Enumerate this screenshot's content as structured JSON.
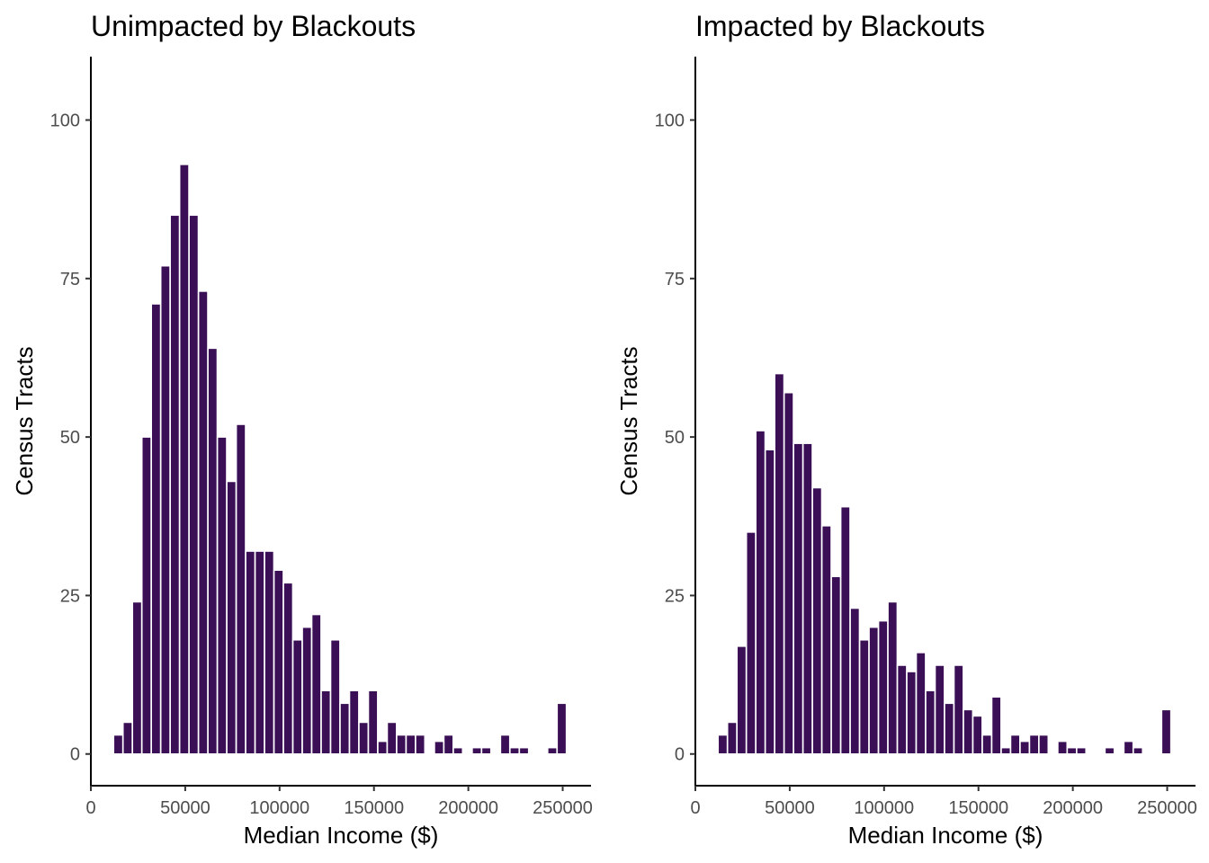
{
  "chart_data": [
    {
      "type": "bar",
      "title": "Unimpacted by Blackouts",
      "xlabel": "Median Income ($)",
      "ylabel": "Census Tracts",
      "xlim": [
        0,
        265000
      ],
      "ylim": [
        -5,
        110
      ],
      "x_ticks": [
        0,
        50000,
        100000,
        150000,
        200000,
        250000
      ],
      "y_ticks": [
        0,
        25,
        50,
        75,
        100
      ],
      "grid": false,
      "bar_color": "#3b0f56",
      "bin_width": 4900,
      "x": [
        14500,
        19500,
        24500,
        29500,
        34500,
        39500,
        44500,
        49500,
        54500,
        59500,
        64500,
        69500,
        74500,
        79500,
        84500,
        89500,
        94500,
        99500,
        104500,
        109500,
        114500,
        119500,
        124500,
        129500,
        134500,
        139500,
        144500,
        149500,
        154500,
        159500,
        164500,
        169500,
        174500,
        179500,
        184500,
        189500,
        194500,
        199500,
        204500,
        209500,
        214500,
        219500,
        224500,
        229500,
        234500,
        239500,
        244500,
        249500
      ],
      "values": [
        3,
        5,
        24,
        50,
        71,
        77,
        85,
        93,
        85,
        73,
        64,
        50,
        43,
        52,
        32,
        32,
        32,
        29,
        27,
        18,
        20,
        22,
        10,
        18,
        8,
        10,
        5,
        10,
        2,
        5,
        3,
        3,
        3,
        0,
        2,
        3,
        1,
        0,
        1,
        1,
        0,
        3,
        1,
        1,
        0,
        0,
        1,
        8
      ]
    },
    {
      "type": "bar",
      "title": "Impacted by Blackouts",
      "xlabel": "Median Income ($)",
      "ylabel": "Census Tracts",
      "xlim": [
        0,
        265000
      ],
      "ylim": [
        -5,
        110
      ],
      "x_ticks": [
        0,
        50000,
        100000,
        150000,
        200000,
        250000
      ],
      "y_ticks": [
        0,
        25,
        50,
        75,
        100
      ],
      "grid": false,
      "bar_color": "#3b0f56",
      "bin_width": 4900,
      "x": [
        14500,
        19500,
        24500,
        29500,
        34500,
        39500,
        44500,
        49500,
        54500,
        59500,
        64500,
        69500,
        74500,
        79500,
        84500,
        89500,
        94500,
        99500,
        104500,
        109500,
        114500,
        119500,
        124500,
        129500,
        134500,
        139500,
        144500,
        149500,
        154500,
        159500,
        164500,
        169500,
        174500,
        179500,
        184500,
        189500,
        194500,
        199500,
        204500,
        209500,
        214500,
        219500,
        224500,
        229500,
        234500,
        239500,
        244500,
        249500
      ],
      "values": [
        3,
        5,
        17,
        35,
        51,
        48,
        60,
        57,
        49,
        49,
        42,
        36,
        28,
        39,
        23,
        18,
        20,
        21,
        24,
        14,
        13,
        16,
        10,
        14,
        8,
        14,
        7,
        6,
        3,
        9,
        1,
        3,
        2,
        3,
        3,
        0,
        2,
        1,
        1,
        0,
        0,
        1,
        0,
        2,
        1,
        0,
        0,
        7
      ]
    }
  ]
}
